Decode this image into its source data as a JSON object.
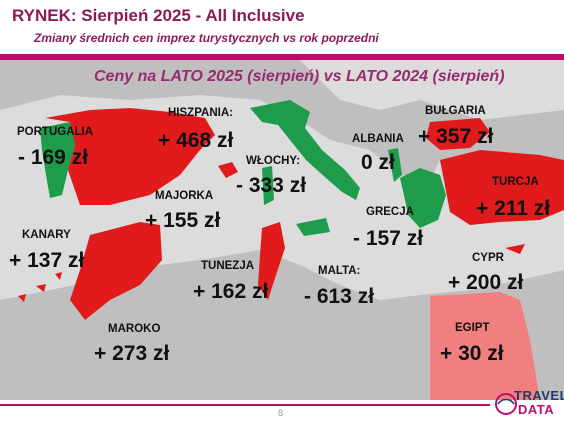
{
  "header": {
    "title": "RYNEK: Sierpień 2025 - All Inclusive",
    "subtitle": "Zmiany średnich cen imprez turystycznych vs rok poprzedni"
  },
  "map": {
    "title": "Ceny na LATO 2025 (sierpień) vs  LATO 2024 (sierpień)",
    "colors": {
      "increase": "#e11b1b",
      "decrease": "#1e9b4b",
      "small_increase": "#f08080",
      "land": "#bfbfbf",
      "sea": "#dcdcdc"
    },
    "countries": [
      {
        "id": "portugalia",
        "name": "PORTUGALIA",
        "value": "- 169 zł",
        "direction": "decrease"
      },
      {
        "id": "hiszpania",
        "name": "HISZPANIA:",
        "value": "+ 468 zł",
        "direction": "increase"
      },
      {
        "id": "wlochy",
        "name": "WŁOCHY:",
        "value": "- 333 zł",
        "direction": "decrease"
      },
      {
        "id": "albania",
        "name": "ALBANIA",
        "value": "0 zł",
        "direction": "neutral"
      },
      {
        "id": "bulgaria",
        "name": "BUŁGARIA",
        "value": "+ 357 zł",
        "direction": "increase"
      },
      {
        "id": "majorka",
        "name": "MAJORKA",
        "value": "+ 155 zł",
        "direction": "increase"
      },
      {
        "id": "turcja",
        "name": "TURCJA",
        "value": "+ 211 zł",
        "direction": "increase"
      },
      {
        "id": "grecja",
        "name": "GRECJA",
        "value": "- 157 zł",
        "direction": "decrease"
      },
      {
        "id": "kanary",
        "name": "KANARY",
        "value": "+ 137 zł",
        "direction": "increase"
      },
      {
        "id": "tunezja",
        "name": "TUNEZJA",
        "value": "+ 162 zł",
        "direction": "increase"
      },
      {
        "id": "cypr",
        "name": "CYPR",
        "value": "+ 200 zł",
        "direction": "increase"
      },
      {
        "id": "malta",
        "name": "MALTA:",
        "value": "- 613 zł",
        "direction": "decrease"
      },
      {
        "id": "maroko",
        "name": "MAROKO",
        "value": "+ 273 zł",
        "direction": "increase"
      },
      {
        "id": "egipt",
        "name": "EGIPT",
        "value": "+ 30 zł",
        "direction": "increase"
      }
    ]
  },
  "footer": {
    "page_number": "8",
    "logo_top": "TRAVEL",
    "logo_bottom": "DATA"
  }
}
